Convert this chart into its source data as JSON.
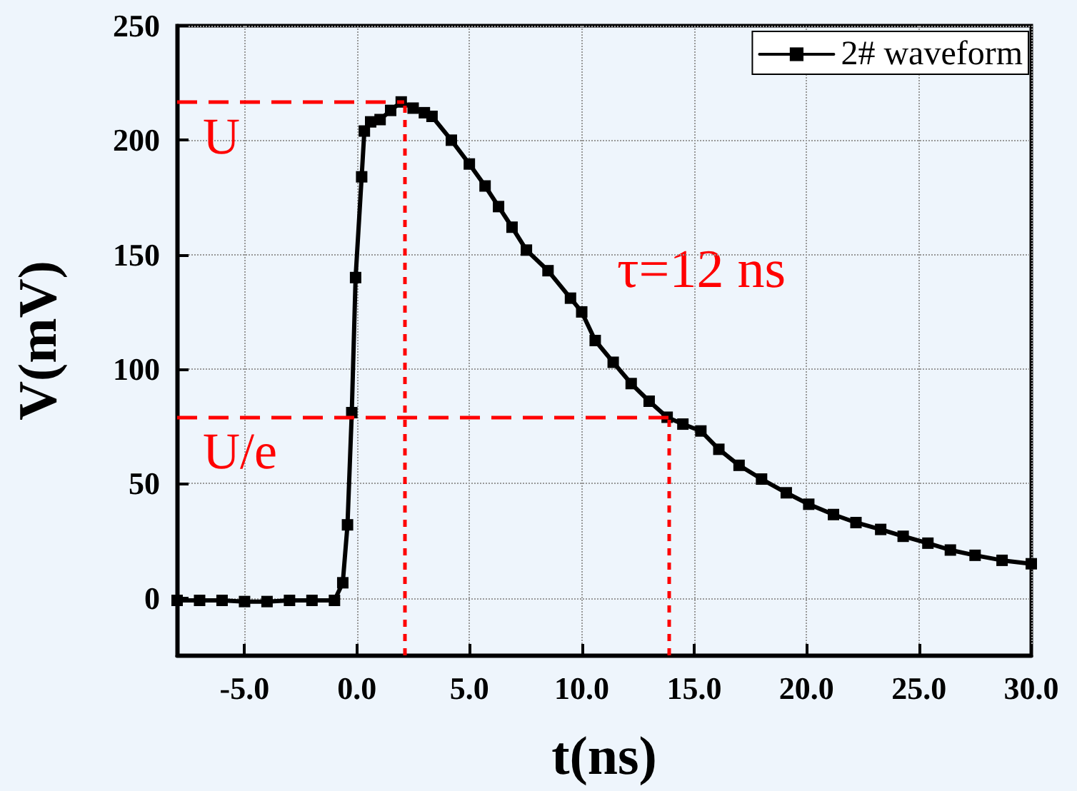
{
  "chart_data": {
    "type": "line",
    "xlabel": "t(ns)",
    "ylabel": "V(mV)",
    "x": [
      -8,
      -7,
      -6,
      -5,
      -4,
      -3,
      -2,
      -1,
      -0.63,
      -0.42,
      -0.23,
      -0.06,
      0.21,
      0.33,
      0.61,
      1.03,
      1.5,
      1.97,
      2.5,
      3.0,
      3.34,
      4.2,
      5.0,
      5.7,
      6.3,
      6.9,
      7.54,
      8.5,
      9.5,
      10.0,
      10.6,
      11.4,
      12.2,
      13.0,
      13.8,
      14.5,
      15.3,
      16.1,
      17.0,
      18.0,
      19.1,
      20.1,
      21.2,
      22.2,
      23.3,
      24.3,
      25.4,
      26.4,
      27.5,
      28.7,
      30.0
    ],
    "series": [
      {
        "name": "2# waveform",
        "color": "#000000",
        "values": [
          -1,
          -1,
          -1,
          -1.5,
          -1.5,
          -1,
          -1,
          -1,
          6.7,
          32,
          81,
          140,
          184,
          204,
          208,
          209,
          213,
          216.7,
          214,
          212,
          210.4,
          200,
          189.6,
          180,
          171,
          162,
          152,
          143,
          131,
          125,
          112.5,
          103,
          93.7,
          86,
          79,
          76,
          73,
          65,
          58,
          52,
          46,
          41,
          36.5,
          33,
          30,
          27,
          24,
          21,
          18.7,
          16.5,
          15
        ]
      }
    ],
    "xlim": [
      -8,
      30
    ],
    "ylim": [
      -25,
      250
    ],
    "xticks": [
      {
        "value": -5,
        "label": "-5.0"
      },
      {
        "value": 0,
        "label": "0.0"
      },
      {
        "value": 5,
        "label": "5.0"
      },
      {
        "value": 10,
        "label": "10.0"
      },
      {
        "value": 15,
        "label": "15.0"
      },
      {
        "value": 20,
        "label": "20.0"
      },
      {
        "value": 25,
        "label": "25.0"
      },
      {
        "value": 30,
        "label": "30.0"
      }
    ],
    "yticks": [
      0,
      50,
      100,
      150,
      200,
      250
    ],
    "ref_lines": [
      {
        "axis": "y",
        "value": 216.7,
        "label": "U",
        "color": "#ff0000",
        "line_style": "dashed"
      },
      {
        "axis": "x",
        "value": 2.1,
        "label": null,
        "color": "#ff0000",
        "line_style": "dotted"
      },
      {
        "axis": "y",
        "value": 79,
        "label": "U/e",
        "color": "#ff0000",
        "line_style": "dashed"
      },
      {
        "axis": "x",
        "value": 13.9,
        "label": null,
        "color": "#ff0000",
        "line_style": "dotted"
      }
    ],
    "annotations": [
      "τ=12 ns"
    ],
    "grid": true,
    "legend": "top right",
    "marker": "square",
    "line_style": "solid"
  }
}
